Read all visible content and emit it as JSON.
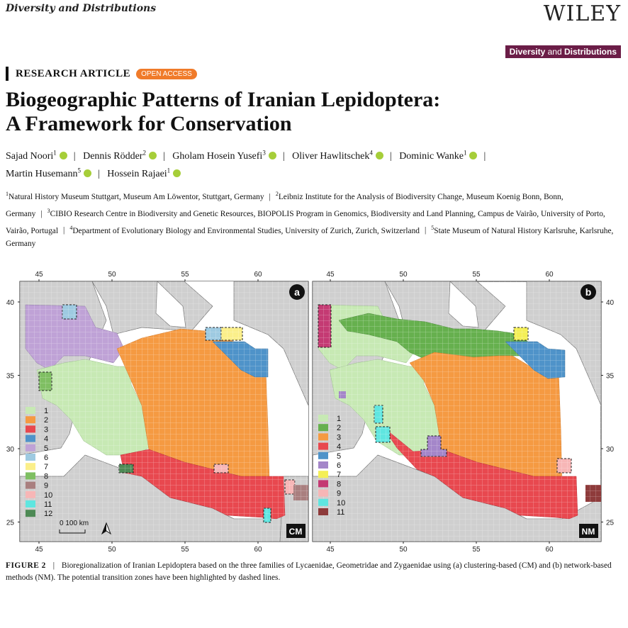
{
  "header": {
    "journal": "Diversity and Distributions",
    "publisher": "WILEY",
    "badge_a": "Diversity",
    "badge_b": " and ",
    "badge_c": "Distributions"
  },
  "article": {
    "type": "RESEARCH ARTICLE",
    "access": "OPEN ACCESS",
    "title_line1": "Biogeographic Patterns of Iranian Lepidoptera:",
    "title_line2": "A Framework for Conservation"
  },
  "authors": [
    {
      "name": "Sajad Noori",
      "sup": "1"
    },
    {
      "name": "Dennis Rödder",
      "sup": "2"
    },
    {
      "name": "Gholam Hosein Yusefi",
      "sup": "3"
    },
    {
      "name": "Oliver Hawlitschek",
      "sup": "4"
    },
    {
      "name": "Dominic Wanke",
      "sup": "1"
    },
    {
      "name": "Martin Husemann",
      "sup": "5"
    },
    {
      "name": "Hossein Rajaei",
      "sup": "1"
    }
  ],
  "affiliations": [
    {
      "sup": "1",
      "text": "Natural History Museum Stuttgart, Museum Am Löwentor, Stuttgart, Germany"
    },
    {
      "sup": "2",
      "text": "Leibniz Institute for the Analysis of Biodiversity Change, Museum Koenig Bonn, Bonn, Germany"
    },
    {
      "sup": "3",
      "text": "CIBIO Research Centre in Biodiversity and Genetic Resources, BIOPOLIS Program in Genomics, Biodiversity and Land Planning, Campus de Vairão, University of Porto, Vairão, Portugal"
    },
    {
      "sup": "4",
      "text": "Department of Evolutionary Biology and Environmental Studies, University of Zurich, Zurich, Switzerland"
    },
    {
      "sup": "5",
      "text": "State Museum of Natural History Karlsruhe, Karlsruhe, Germany"
    }
  ],
  "figure": {
    "panel_a": {
      "letter": "a",
      "method": "CM",
      "legend": [
        [
          "1",
          "#c7e9b4"
        ],
        [
          "2",
          "#f59a42"
        ],
        [
          "3",
          "#e8484f"
        ],
        [
          "4",
          "#4f93c9"
        ],
        [
          "5",
          "#bfa2d6"
        ],
        [
          "6",
          "#9ecae1"
        ],
        [
          "7",
          "#fbef8a"
        ],
        [
          "8",
          "#7fbf62"
        ],
        [
          "9",
          "#a97f7f"
        ],
        [
          "10",
          "#f7b6b6"
        ],
        [
          "11",
          "#5fe6e0"
        ],
        [
          "12",
          "#4e8a55"
        ]
      ]
    },
    "panel_b": {
      "letter": "b",
      "method": "NM",
      "legend": [
        [
          "1",
          "#c7e9b4"
        ],
        [
          "2",
          "#66b04e"
        ],
        [
          "3",
          "#f59a42"
        ],
        [
          "4",
          "#e8484f"
        ],
        [
          "5",
          "#4f93c9"
        ],
        [
          "6",
          "#a486c9"
        ],
        [
          "7",
          "#f4ef56"
        ],
        [
          "8",
          "#c43a73"
        ],
        [
          "9",
          "#f7b6b6"
        ],
        [
          "10",
          "#5fe6e0"
        ],
        [
          "11",
          "#8e3b3b"
        ]
      ]
    },
    "lon_ticks": [
      "45",
      "50",
      "55",
      "60"
    ],
    "lat_ticks": [
      "40",
      "35",
      "30",
      "25"
    ],
    "scale_label": "0  100 km"
  },
  "caption": {
    "label": "FIGURE 2",
    "sep": "|",
    "text": "Bioregionalization of Iranian Lepidoptera based on the three families of Lycaenidae, Geometridae and Zygaenidae using (a) clustering-based (CM) and (b) network-based methods (NM). The potential transition zones have been highlighted by dashed lines."
  }
}
